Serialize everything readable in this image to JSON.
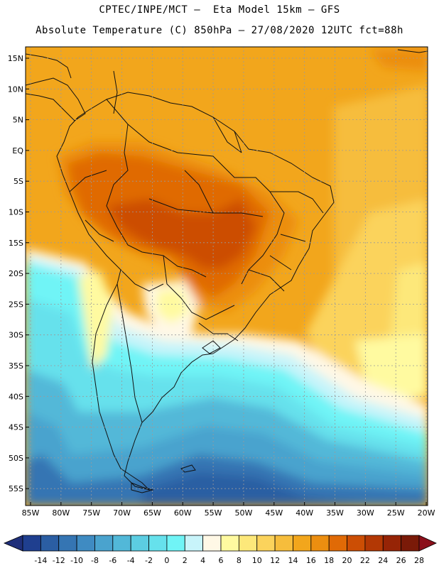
{
  "header": {
    "line1": "CPTEC/INPE/MCT –  Eta Model 15km – GFS",
    "line2": "Absolute Temperature (C) 850hPa – 27/08/2020 12UTC fct=88h"
  },
  "map": {
    "lat_labels": [
      "15N",
      "10N",
      "5N",
      "EQ",
      "5S",
      "10S",
      "15S",
      "20S",
      "25S",
      "30S",
      "35S",
      "40S",
      "45S",
      "50S",
      "55S"
    ],
    "lon_labels": [
      "85W",
      "80W",
      "75W",
      "70W",
      "65W",
      "60W",
      "55W",
      "50W",
      "45W",
      "40W",
      "35W",
      "30W",
      "25W",
      "20W"
    ]
  },
  "colorbar": {
    "labels": [
      "-14",
      "-12",
      "-10",
      "-8",
      "-6",
      "-4",
      "-2",
      "0",
      "2",
      "4",
      "6",
      "8",
      "10",
      "12",
      "14",
      "16",
      "18",
      "20",
      "22",
      "24",
      "26",
      "28"
    ],
    "colors": [
      "#1f3f8f",
      "#2b5ea3",
      "#3575b3",
      "#3f8bc2",
      "#4aa3ce",
      "#52b8d8",
      "#5ccde2",
      "#66e1ec",
      "#70f4f6",
      "#c8f4fa",
      "#fff8e6",
      "#fffaa0",
      "#fde87a",
      "#fbd35c",
      "#f6bd3c",
      "#f2a61c",
      "#ec8e10",
      "#e06a06",
      "#cc4e04",
      "#b33804",
      "#962406",
      "#7a1a08"
    ],
    "left_cap_color": "#1f2f7a",
    "right_cap_color": "#8b0f1a"
  }
}
